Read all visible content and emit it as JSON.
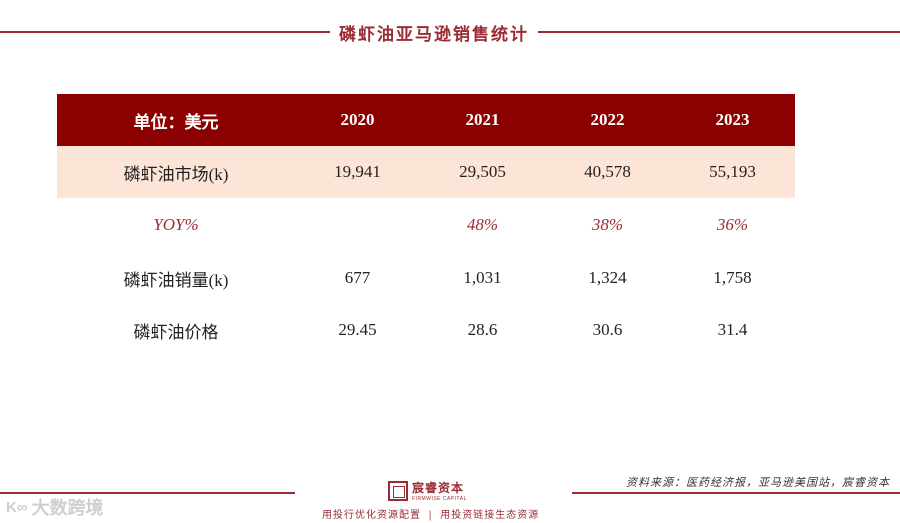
{
  "header": {
    "title": "磷虾油亚马逊销售统计"
  },
  "table": {
    "corner_label": "单位：美元",
    "years": [
      "2020",
      "2021",
      "2022",
      "2023"
    ],
    "rows": [
      {
        "label": "磷虾油市场(k)",
        "values": [
          "19,941",
          "29,505",
          "40,578",
          "55,193"
        ]
      },
      {
        "label": "YOY%",
        "values": [
          "",
          "48%",
          "38%",
          "36%"
        ]
      },
      {
        "label": "磷虾油销量(k)",
        "values": [
          "677",
          "1,031",
          "1,324",
          "1,758"
        ]
      },
      {
        "label": "磷虾油价格",
        "values": [
          "29.45",
          "28.6",
          "30.6",
          "31.4"
        ]
      }
    ]
  },
  "footer": {
    "source": "资料来源：医药经济报，亚马逊美国站，宸睿资本",
    "logo_cn": "宸睿资本",
    "logo_en": "FIRMWISE CAPITAL",
    "slogan_left": "用投行优化资源配置",
    "slogan_sep": "|",
    "slogan_right": "用投资链接生态资源",
    "watermark_mark": "K∞",
    "watermark_text": "大数跨境"
  },
  "colors": {
    "accent": "#9b2c33",
    "header_bg": "#8b0000",
    "highlight_row_bg": "#fce4d6"
  }
}
